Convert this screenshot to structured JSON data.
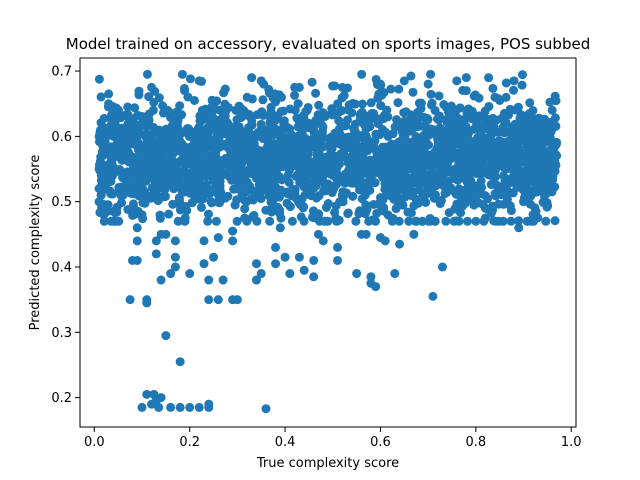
{
  "chart_data": {
    "type": "scatter",
    "title": "Model trained on accessory, evaluated on sports images, POS subbed",
    "xlabel": "True complexity score",
    "ylabel": "Predicted complexity score",
    "xlim": [
      -0.03,
      1.01
    ],
    "ylim": [
      0.155,
      0.72
    ],
    "xticks": [
      0.0,
      0.2,
      0.4,
      0.6,
      0.8,
      1.0
    ],
    "xtick_labels": [
      "0.0",
      "0.2",
      "0.4",
      "0.6",
      "0.8",
      "1.0"
    ],
    "yticks": [
      0.2,
      0.3,
      0.4,
      0.5,
      0.6,
      0.7
    ],
    "ytick_labels": [
      "0.2",
      "0.3",
      "0.4",
      "0.5",
      "0.6",
      "0.7"
    ],
    "grid": false,
    "legend": "none",
    "marker_color": "#1f77b4",
    "cloud": {
      "x_range": [
        0.01,
        0.97
      ],
      "y_center": 0.565,
      "y_spread": 0.045,
      "y_clip": [
        0.47,
        0.695
      ],
      "approx_count": 2500
    },
    "points": [
      [
        0.01,
        0.6
      ],
      [
        0.01,
        0.55
      ],
      [
        0.01,
        0.52
      ],
      [
        0.01,
        0.5
      ],
      [
        0.03,
        0.665
      ],
      [
        0.03,
        0.65
      ],
      [
        0.05,
        0.64
      ],
      [
        0.07,
        0.645
      ],
      [
        0.08,
        0.41
      ],
      [
        0.075,
        0.35
      ],
      [
        0.09,
        0.41
      ],
      [
        0.09,
        0.46
      ],
      [
        0.09,
        0.44
      ],
      [
        0.1,
        0.48
      ],
      [
        0.12,
        0.675
      ],
      [
        0.11,
        0.35
      ],
      [
        0.11,
        0.345
      ],
      [
        0.13,
        0.44
      ],
      [
        0.14,
        0.45
      ],
      [
        0.13,
        0.42
      ],
      [
        0.14,
        0.38
      ],
      [
        0.15,
        0.45
      ],
      [
        0.15,
        0.295
      ],
      [
        0.16,
        0.39
      ],
      [
        0.17,
        0.44
      ],
      [
        0.17,
        0.415
      ],
      [
        0.17,
        0.4
      ],
      [
        0.18,
        0.255
      ],
      [
        0.19,
        0.47
      ],
      [
        0.2,
        0.39
      ],
      [
        0.21,
        0.655
      ],
      [
        0.22,
        0.685
      ],
      [
        0.23,
        0.44
      ],
      [
        0.23,
        0.405
      ],
      [
        0.24,
        0.35
      ],
      [
        0.24,
        0.38
      ],
      [
        0.25,
        0.415
      ],
      [
        0.26,
        0.445
      ],
      [
        0.26,
        0.35
      ],
      [
        0.27,
        0.38
      ],
      [
        0.29,
        0.44
      ],
      [
        0.29,
        0.455
      ],
      [
        0.29,
        0.35
      ],
      [
        0.3,
        0.35
      ],
      [
        0.33,
        0.69
      ],
      [
        0.34,
        0.405
      ],
      [
        0.34,
        0.38
      ],
      [
        0.35,
        0.685
      ],
      [
        0.355,
        0.68
      ],
      [
        0.35,
        0.39
      ],
      [
        0.38,
        0.43
      ],
      [
        0.38,
        0.405
      ],
      [
        0.39,
        0.46
      ],
      [
        0.4,
        0.415
      ],
      [
        0.41,
        0.39
      ],
      [
        0.42,
        0.675
      ],
      [
        0.43,
        0.675
      ],
      [
        0.43,
        0.415
      ],
      [
        0.44,
        0.395
      ],
      [
        0.46,
        0.385
      ],
      [
        0.46,
        0.41
      ],
      [
        0.47,
        0.45
      ],
      [
        0.48,
        0.44
      ],
      [
        0.51,
        0.43
      ],
      [
        0.51,
        0.41
      ],
      [
        0.52,
        0.675
      ],
      [
        0.55,
        0.39
      ],
      [
        0.56,
        0.45
      ],
      [
        0.57,
        0.45
      ],
      [
        0.58,
        0.385
      ],
      [
        0.58,
        0.375
      ],
      [
        0.59,
        0.37
      ],
      [
        0.6,
        0.68
      ],
      [
        0.6,
        0.445
      ],
      [
        0.61,
        0.44
      ],
      [
        0.63,
        0.39
      ],
      [
        0.64,
        0.435
      ],
      [
        0.65,
        0.685
      ],
      [
        0.67,
        0.45
      ],
      [
        0.7,
        0.68
      ],
      [
        0.705,
        0.695
      ],
      [
        0.71,
        0.355
      ],
      [
        0.73,
        0.4
      ],
      [
        0.76,
        0.685
      ],
      [
        0.78,
        0.67
      ],
      [
        0.78,
        0.69
      ],
      [
        0.8,
        0.47
      ],
      [
        0.82,
        0.49
      ],
      [
        0.82,
        0.475
      ],
      [
        0.84,
        0.66
      ],
      [
        0.85,
        0.655
      ],
      [
        0.88,
        0.685
      ],
      [
        0.89,
        0.46
      ],
      [
        0.9,
        0.5
      ],
      [
        0.92,
        0.53
      ],
      [
        0.92,
        0.48
      ],
      [
        0.94,
        0.62
      ],
      [
        0.95,
        0.56
      ],
      [
        0.96,
        0.64
      ],
      [
        0.96,
        0.55
      ],
      [
        0.1,
        0.185
      ],
      [
        0.11,
        0.205
      ],
      [
        0.12,
        0.19
      ],
      [
        0.125,
        0.205
      ],
      [
        0.13,
        0.2
      ],
      [
        0.13,
        0.195
      ],
      [
        0.135,
        0.185
      ],
      [
        0.14,
        0.2
      ],
      [
        0.16,
        0.185
      ],
      [
        0.18,
        0.185
      ],
      [
        0.2,
        0.185
      ],
      [
        0.22,
        0.185
      ],
      [
        0.24,
        0.185
      ],
      [
        0.24,
        0.19
      ],
      [
        0.36,
        0.183
      ]
    ]
  }
}
